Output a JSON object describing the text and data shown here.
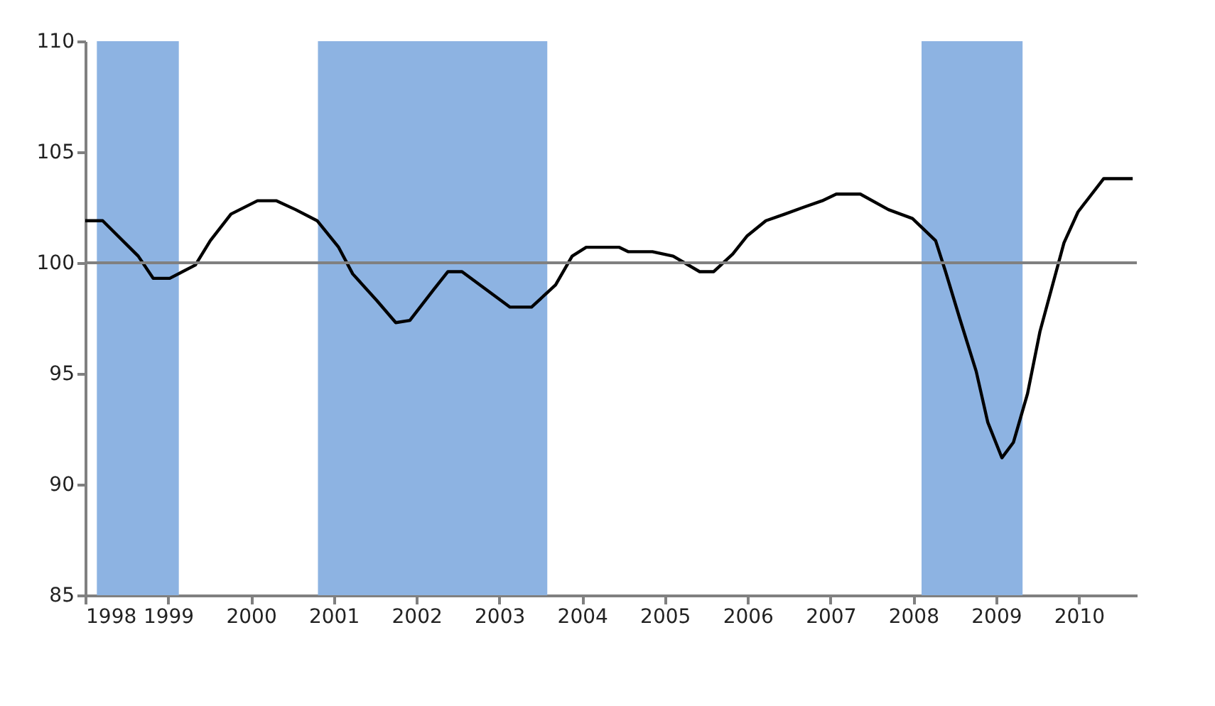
{
  "chart_data": {
    "type": "line",
    "x": [
      1998.0,
      1998.21,
      1998.64,
      1998.82,
      1999.02,
      1999.33,
      1999.51,
      1999.76,
      2000.08,
      2000.31,
      2000.54,
      2000.8,
      2001.06,
      2001.23,
      2001.52,
      2001.75,
      2001.92,
      2002.21,
      2002.38,
      2002.55,
      2002.84,
      2003.13,
      2003.39,
      2003.68,
      2003.88,
      2004.05,
      2004.45,
      2004.56,
      2004.85,
      2005.1,
      2005.42,
      2005.59,
      2005.82,
      2005.99,
      2006.22,
      2006.45,
      2006.67,
      2006.9,
      2007.07,
      2007.36,
      2007.7,
      2007.99,
      2008.27,
      2008.39,
      2008.56,
      2008.76,
      2008.9,
      2009.07,
      2009.21,
      2009.38,
      2009.53,
      2009.82,
      2009.99,
      2010.3,
      2010.65
    ],
    "series": [
      {
        "color": "#000000",
        "values": [
          101.9,
          101.9,
          100.3,
          99.3,
          99.3,
          99.9,
          101.0,
          102.2,
          102.8,
          102.8,
          102.4,
          101.9,
          100.7,
          99.5,
          98.3,
          97.3,
          97.4,
          98.8,
          99.6,
          99.6,
          98.8,
          98.0,
          98.0,
          99.0,
          100.3,
          100.7,
          100.7,
          100.5,
          100.5,
          100.3,
          99.6,
          99.6,
          100.4,
          101.2,
          101.9,
          102.2,
          102.5,
          102.8,
          103.1,
          103.1,
          102.4,
          102.0,
          101.0,
          99.6,
          97.5,
          95.1,
          92.8,
          91.2,
          91.9,
          94.1,
          96.9,
          100.9,
          102.3,
          103.8,
          103.8
        ]
      }
    ],
    "xlim": [
      1998,
      2010.7
    ],
    "xticks": [
      1998,
      1999,
      2000,
      2001,
      2002,
      2003,
      2004,
      2005,
      2006,
      2007,
      2008,
      2009,
      2010
    ],
    "ylim": [
      85,
      110
    ],
    "yticks": [
      85,
      90,
      95,
      100,
      105,
      110
    ],
    "bands": [
      {
        "axis": "x",
        "from": 1998.14,
        "to": 1999.13,
        "color": "#8db3e2"
      },
      {
        "axis": "x",
        "from": 2000.81,
        "to": 2003.58,
        "color": "#8db3e2"
      },
      {
        "axis": "x",
        "from": 2008.1,
        "to": 2009.32,
        "color": "#8db3e2"
      }
    ],
    "ref_lines": [
      {
        "axis": "y",
        "value": 100,
        "color": "#808080"
      }
    ],
    "grid": false,
    "marker": "none",
    "line_style": "solid"
  }
}
